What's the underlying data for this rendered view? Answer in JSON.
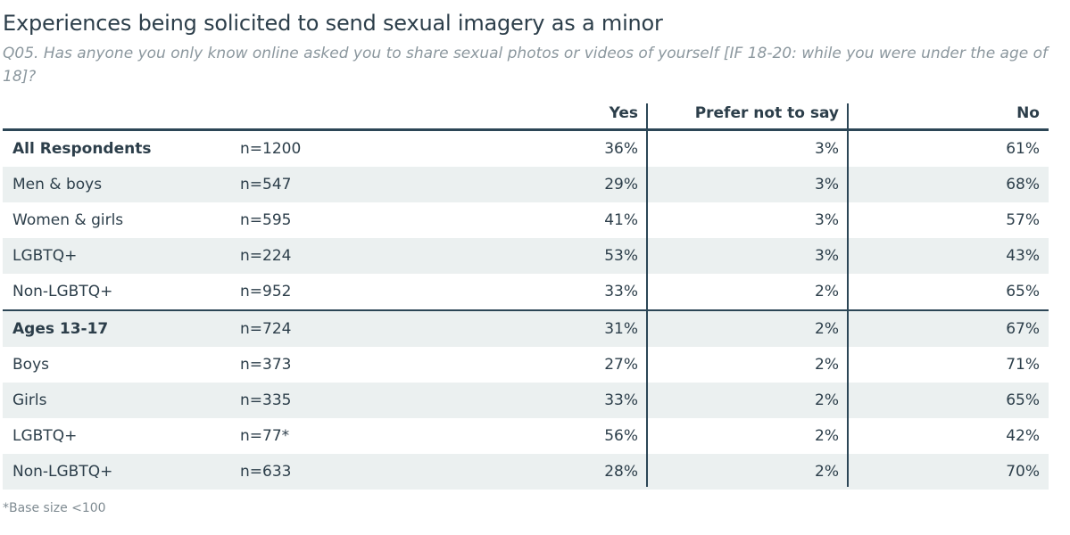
{
  "title": "Experiences being solicited to send sexual imagery as a minor",
  "subtitle": "Q05. Has anyone you only know online asked you to share sexual photos or videos of yourself [IF 18-20: while you were under the age of 18]?",
  "footnote": "*Base size <100",
  "chart_data": {
    "type": "table",
    "columns": [
      "Yes",
      "Prefer not to say",
      "No"
    ],
    "rows": [
      {
        "label": "All Respondents",
        "n": "n=1200",
        "yes": "36%",
        "pnts": "3%",
        "no": "61%"
      },
      {
        "label": "Men & boys",
        "n": "n=547",
        "yes": "29%",
        "pnts": "3%",
        "no": "68%"
      },
      {
        "label": "Women & girls",
        "n": "n=595",
        "yes": "41%",
        "pnts": "3%",
        "no": "57%"
      },
      {
        "label": "LGBTQ+",
        "n": "n=224",
        "yes": "53%",
        "pnts": "3%",
        "no": "43%"
      },
      {
        "label": "Non-LGBTQ+",
        "n": "n=952",
        "yes": "33%",
        "pnts": "2%",
        "no": "65%"
      },
      {
        "label": "Ages 13-17",
        "n": "n=724",
        "yes": "31%",
        "pnts": "2%",
        "no": "67%"
      },
      {
        "label": "Boys",
        "n": "n=373",
        "yes": "27%",
        "pnts": "2%",
        "no": "71%"
      },
      {
        "label": "Girls",
        "n": "n=335",
        "yes": "33%",
        "pnts": "2%",
        "no": "65%"
      },
      {
        "label": "LGBTQ+",
        "n": "n=77*",
        "yes": "56%",
        "pnts": "2%",
        "no": "42%"
      },
      {
        "label": "Non-LGBTQ+",
        "n": "n=633",
        "yes": "28%",
        "pnts": "2%",
        "no": "70%"
      }
    ]
  },
  "colors": {
    "text": "#2c3e4a",
    "rule": "#2c4656",
    "shade": "#ebf0f0",
    "muted": "#8b979e"
  }
}
